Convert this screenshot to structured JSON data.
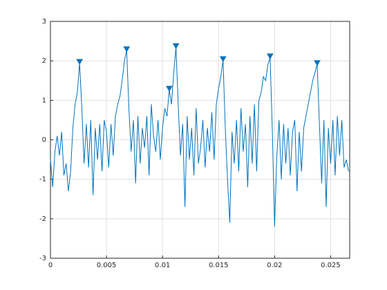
{
  "chart_data": {
    "type": "line",
    "color": "#0072bd",
    "grid": true,
    "xlim": [
      0,
      0.0267
    ],
    "ylim": [
      -3,
      3
    ],
    "xticks": [
      0,
      0.005,
      0.01,
      0.015,
      0.02,
      0.025
    ],
    "yticks": [
      -3,
      -2,
      -1,
      0,
      1,
      2,
      3
    ],
    "x": [
      0,
      0.0002,
      0.0004,
      0.0006,
      0.0008,
      0.001,
      0.0012,
      0.0014,
      0.0016,
      0.0018,
      0.002,
      0.0022,
      0.0024,
      0.0026,
      0.0028,
      0.003,
      0.0032,
      0.0034,
      0.0036,
      0.0038,
      0.004,
      0.0042,
      0.0044,
      0.0046,
      0.0048,
      0.005,
      0.0052,
      0.0054,
      0.0056,
      0.0058,
      0.006,
      0.0062,
      0.0064,
      0.0066,
      0.0068,
      0.007,
      0.0072,
      0.0074,
      0.0076,
      0.0078,
      0.008,
      0.0082,
      0.0084,
      0.0086,
      0.0088,
      0.009,
      0.0092,
      0.0094,
      0.0096,
      0.0098,
      0.01,
      0.0102,
      0.0104,
      0.0106,
      0.0108,
      0.011,
      0.0112,
      0.0114,
      0.0116,
      0.0118,
      0.012,
      0.0122,
      0.0124,
      0.0126,
      0.0128,
      0.013,
      0.0132,
      0.0134,
      0.0136,
      0.0138,
      0.014,
      0.0142,
      0.0144,
      0.0146,
      0.0148,
      0.015,
      0.0152,
      0.0154,
      0.0156,
      0.0158,
      0.016,
      0.0162,
      0.0164,
      0.0166,
      0.0168,
      0.017,
      0.0172,
      0.0174,
      0.0176,
      0.0178,
      0.018,
      0.0182,
      0.0184,
      0.0186,
      0.0188,
      0.019,
      0.0192,
      0.0194,
      0.0196,
      0.0198,
      0.02,
      0.0202,
      0.0204,
      0.0206,
      0.0208,
      0.021,
      0.0212,
      0.0214,
      0.0216,
      0.0218,
      0.022,
      0.0222,
      0.0224,
      0.0226,
      0.0228,
      0.023,
      0.0232,
      0.0234,
      0.0236,
      0.0238,
      0.024,
      0.0242,
      0.0244,
      0.0246,
      0.0248,
      0.025,
      0.0252,
      0.0254,
      0.0256,
      0.0258,
      0.026,
      0.0262,
      0.0264,
      0.0266
    ],
    "values": [
      -0.5,
      -1.2,
      -0.3,
      0.1,
      -0.4,
      0.2,
      -0.9,
      -0.6,
      -1.3,
      -0.8,
      0.3,
      0.9,
      1.2,
      1.95,
      0.8,
      -0.6,
      0.4,
      -0.7,
      0.5,
      -1.4,
      0.3,
      -0.5,
      0.4,
      -0.8,
      0.5,
      0.2,
      -0.7,
      0.4,
      -0.4,
      0.6,
      0.9,
      1.1,
      1.5,
      2.0,
      2.27,
      0.8,
      -0.3,
      0.5,
      -1.1,
      0.6,
      -0.6,
      0.3,
      -0.2,
      0.6,
      -0.9,
      0.9,
      0.1,
      -0.3,
      0.5,
      -0.5,
      0.3,
      0.8,
      0.6,
      1.27,
      0.9,
      1.7,
      2.35,
      0.9,
      -0.4,
      0.4,
      -1.7,
      0.6,
      -0.5,
      0.3,
      -0.9,
      0.8,
      -0.6,
      -0.2,
      0.5,
      -0.7,
      0.3,
      -0.3,
      0.7,
      -0.5,
      0.9,
      1.3,
      1.6,
      2.02,
      0.3,
      -1.0,
      -2.1,
      0.2,
      -0.6,
      0.5,
      -0.8,
      0.8,
      -0.3,
      0.4,
      -1.2,
      0.6,
      -0.6,
      0.9,
      -0.8,
      1.0,
      1.2,
      1.6,
      1.5,
      1.9,
      2.09,
      0.2,
      -2.2,
      -0.4,
      0.5,
      -1.0,
      0.4,
      -0.6,
      0.3,
      -0.9,
      0.2,
      0.5,
      -1.3,
      0.2,
      -0.8,
      0.3,
      0.6,
      0.9,
      1.2,
      1.5,
      1.7,
      1.92,
      0.4,
      -1.1,
      0.5,
      -1.7,
      0.3,
      -0.6,
      0.5,
      -0.9,
      0.6,
      -0.4,
      0.5,
      -0.7,
      -0.5,
      -0.8
    ],
    "peaks": {
      "x": [
        0.0026,
        0.0068,
        0.0106,
        0.0112,
        0.0154,
        0.0196,
        0.0238
      ],
      "values": [
        1.95,
        2.27,
        1.27,
        2.35,
        2.02,
        2.09,
        1.92
      ]
    }
  }
}
